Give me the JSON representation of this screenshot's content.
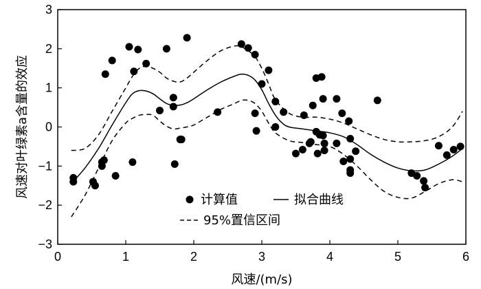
{
  "chart_data": {
    "type": "scatter",
    "xlabel": "风速/(m/s)",
    "ylabel": "风速对叶绿素a含量的效应",
    "xlim": [
      0,
      6
    ],
    "ylim": [
      -3,
      3
    ],
    "xticks": [
      0,
      1,
      2,
      3,
      4,
      5,
      6
    ],
    "yticks": [
      -3,
      -2,
      -1,
      0,
      1,
      2,
      3
    ],
    "xtick_labels": [
      "0",
      "1",
      "2",
      "3",
      "4",
      "5",
      "6"
    ],
    "ytick_labels": [
      "−3",
      "−2",
      "−1",
      "0",
      "1",
      "2",
      "3"
    ],
    "grid": false,
    "legend": {
      "placement": "bottom-center",
      "items": [
        {
          "label": "计算值",
          "style": "marker"
        },
        {
          "label": "拟合曲线",
          "style": "solid-line"
        },
        {
          "label": "95%置信区间",
          "style": "dashed-line"
        }
      ]
    },
    "series": [
      {
        "name": "计算值",
        "kind": "scatter",
        "color": "#000000",
        "x": [
          0.23,
          0.23,
          0.52,
          0.55,
          0.65,
          0.65,
          0.68,
          0.7,
          0.8,
          0.85,
          1.05,
          1.1,
          1.12,
          1.18,
          1.3,
          1.5,
          1.6,
          1.7,
          1.7,
          1.72,
          1.8,
          1.82,
          1.9,
          2.35,
          2.7,
          2.8,
          2.9,
          2.9,
          2.92,
          3.0,
          3.1,
          3.2,
          3.2,
          3.32,
          3.5,
          3.6,
          3.62,
          3.7,
          3.72,
          3.75,
          3.8,
          3.8,
          3.82,
          3.85,
          3.88,
          3.9,
          3.9,
          3.92,
          3.92,
          4.1,
          4.1,
          4.18,
          4.2,
          4.28,
          4.3,
          4.3,
          4.3,
          4.3,
          4.38,
          4.7,
          5.2,
          5.28,
          5.38,
          5.4,
          5.6,
          5.72,
          5.82,
          5.92
        ],
        "y": [
          -1.3,
          -1.4,
          -1.4,
          -1.5,
          -0.9,
          -1.0,
          -0.85,
          1.35,
          1.7,
          -1.25,
          2.05,
          -0.9,
          1.42,
          1.98,
          1.62,
          0.42,
          2.0,
          0.75,
          0.52,
          -0.95,
          -0.32,
          -0.32,
          2.28,
          0.38,
          2.12,
          2.02,
          1.85,
          0.35,
          -0.1,
          1.1,
          1.45,
          0.65,
          0.0,
          0.38,
          -0.68,
          -0.58,
          0.3,
          -0.42,
          -0.38,
          0.55,
          1.25,
          -0.12,
          -0.68,
          -0.2,
          1.28,
          0.72,
          -0.22,
          -0.42,
          -0.6,
          0.72,
          -0.42,
          0.35,
          -0.88,
          0.15,
          -0.3,
          -0.82,
          -1.1,
          -1.18,
          -0.62,
          0.68,
          -1.18,
          -1.25,
          -1.38,
          -1.55,
          -0.48,
          -0.72,
          -0.58,
          -0.5
        ]
      },
      {
        "name": "拟合曲线",
        "kind": "line",
        "style": "solid",
        "color": "#000000",
        "x": [
          0.2,
          0.4,
          0.6,
          0.8,
          1.0,
          1.1,
          1.2,
          1.3,
          1.4,
          1.5,
          1.6,
          1.7,
          1.8,
          1.9,
          2.0,
          2.2,
          2.4,
          2.6,
          2.7,
          2.8,
          2.9,
          3.0,
          3.1,
          3.2,
          3.3,
          3.4,
          3.6,
          3.8,
          4.0,
          4.2,
          4.4,
          4.6,
          4.8,
          5.0,
          5.2,
          5.4,
          5.6,
          5.8,
          5.95
        ],
        "y": [
          -1.45,
          -1.05,
          -0.55,
          0.05,
          0.62,
          0.85,
          0.93,
          0.92,
          0.85,
          0.72,
          0.6,
          0.55,
          0.56,
          0.62,
          0.72,
          0.95,
          1.15,
          1.3,
          1.35,
          1.32,
          1.2,
          0.95,
          0.6,
          0.3,
          0.1,
          0.0,
          -0.05,
          -0.1,
          -0.15,
          -0.25,
          -0.45,
          -0.7,
          -0.9,
          -1.05,
          -1.12,
          -1.1,
          -0.95,
          -0.75,
          -0.55
        ]
      },
      {
        "name": "95%置信区间",
        "kind": "line",
        "style": "dashed",
        "color": "#000000",
        "x": [
          0.2,
          0.4,
          0.6,
          0.8,
          1.0,
          1.1,
          1.2,
          1.3,
          1.4,
          1.5,
          1.6,
          1.7,
          1.8,
          1.9,
          2.0,
          2.2,
          2.4,
          2.6,
          2.7,
          2.8,
          2.9,
          3.0,
          3.1,
          3.2,
          3.4,
          3.6,
          3.8,
          4.0,
          4.2,
          4.4,
          4.6,
          4.8,
          5.0,
          5.2,
          5.4,
          5.6,
          5.8,
          5.95
        ],
        "y": [
          -0.6,
          -0.55,
          -0.2,
          0.4,
          1.0,
          1.3,
          1.5,
          1.55,
          1.5,
          1.4,
          1.25,
          1.17,
          1.15,
          1.25,
          1.4,
          1.7,
          1.95,
          2.07,
          2.05,
          1.95,
          1.8,
          1.5,
          1.1,
          0.7,
          0.35,
          0.25,
          0.25,
          0.2,
          0.1,
          -0.05,
          -0.2,
          -0.32,
          -0.38,
          -0.38,
          -0.35,
          -0.25,
          0.0,
          0.4
        ]
      },
      {
        "name": "95%置信区间",
        "kind": "line",
        "style": "dashed",
        "color": "#000000",
        "x": [
          0.2,
          0.4,
          0.6,
          0.8,
          1.0,
          1.1,
          1.2,
          1.3,
          1.4,
          1.5,
          1.6,
          1.7,
          1.8,
          1.9,
          2.0,
          2.2,
          2.4,
          2.6,
          2.7,
          2.8,
          2.9,
          3.0,
          3.1,
          3.2,
          3.4,
          3.6,
          3.8,
          4.0,
          4.2,
          4.4,
          4.6,
          4.8,
          5.0,
          5.2,
          5.4,
          5.6,
          5.8,
          5.95
        ],
        "y": [
          -2.3,
          -1.75,
          -1.05,
          -0.35,
          0.1,
          0.22,
          0.3,
          0.32,
          0.3,
          0.15,
          0.02,
          -0.05,
          -0.03,
          0.0,
          0.05,
          0.25,
          0.45,
          0.6,
          0.68,
          0.68,
          0.6,
          0.4,
          0.1,
          -0.15,
          -0.35,
          -0.4,
          -0.45,
          -0.5,
          -0.7,
          -1.0,
          -1.35,
          -1.65,
          -1.8,
          -1.82,
          -1.65,
          -1.45,
          -1.35,
          -1.4
        ]
      }
    ]
  }
}
